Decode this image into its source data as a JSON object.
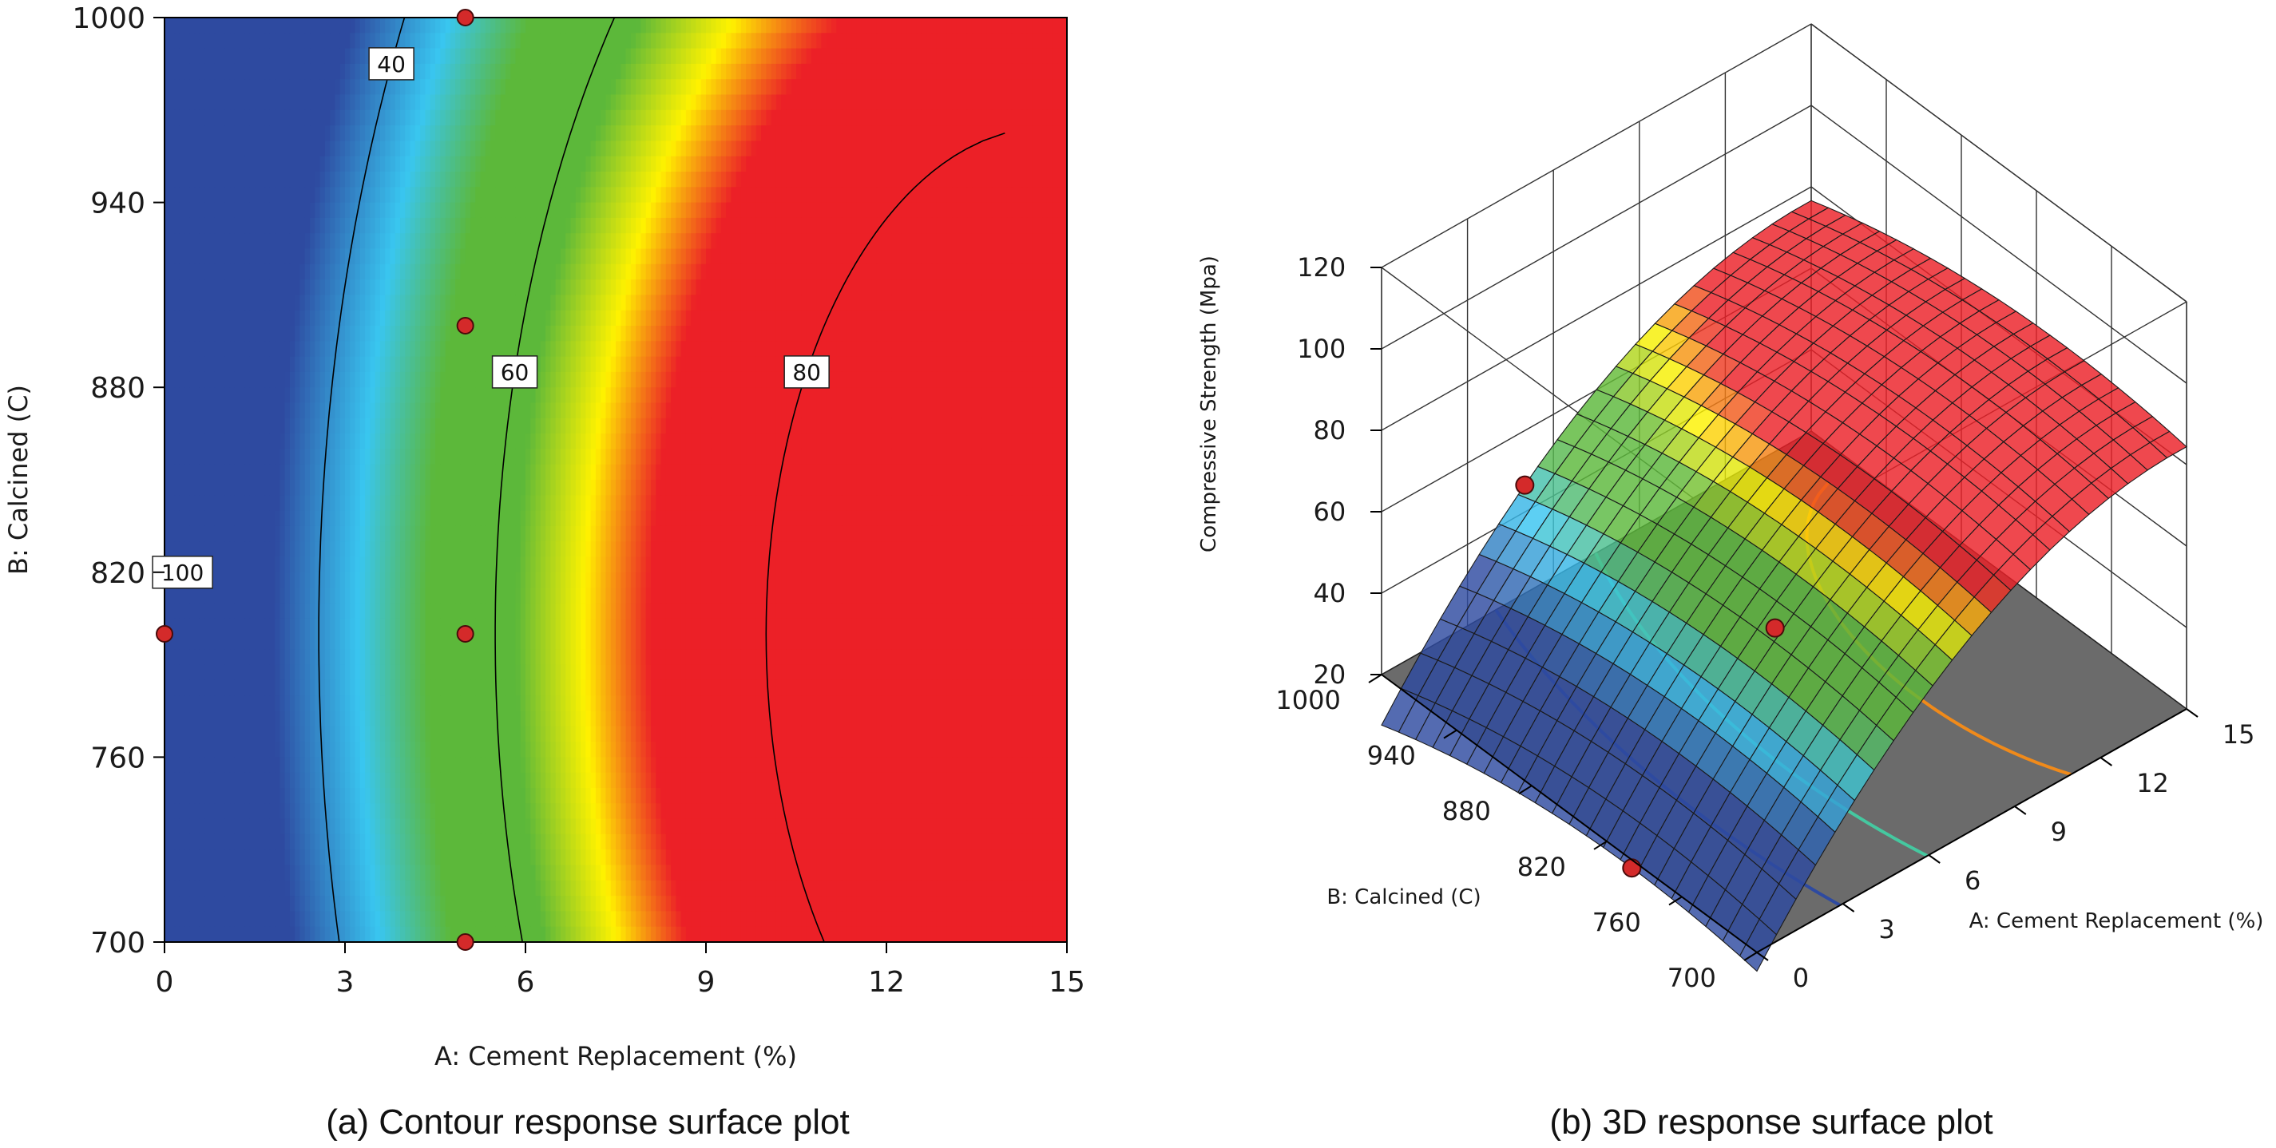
{
  "figure": {
    "caption_a": "(a) Contour response surface plot",
    "caption_b": "(b) 3D response surface plot"
  },
  "chart_data": [
    {
      "type": "contour",
      "title": "(a) Contour response surface plot",
      "xlabel": "A: Cement Replacement (%)",
      "ylabel": "B: Calcined (C)",
      "xlim": [
        0,
        15
      ],
      "ylim": [
        700,
        1000
      ],
      "xticks": [
        "0",
        "3",
        "6",
        "9",
        "12",
        "15"
      ],
      "yticks": [
        "700",
        "760",
        "820",
        "880",
        "940",
        "1000"
      ],
      "contour_levels": [
        {
          "value": 40,
          "label": "40"
        },
        {
          "value": 60,
          "label": "60"
        },
        {
          "value": 80,
          "label": "80"
        },
        {
          "value": 100,
          "label": "100"
        }
      ],
      "design_points": [
        {
          "x": 5,
          "y": 1000
        },
        {
          "x": 5,
          "y": 900
        },
        {
          "x": 0,
          "y": 800
        },
        {
          "x": 5,
          "y": 800
        },
        {
          "x": 5,
          "y": 700
        }
      ],
      "colors": {
        "low": "#2e4aa0",
        "mid": "#39c6f0",
        "green": "#5cb83a",
        "yellow": "#fff200",
        "high": "#ec2027"
      }
    },
    {
      "type": "surface3d",
      "title": "(b) 3D response surface plot",
      "xlabel": "A: Cement Replacement (%)",
      "ylabel": "B: Calcined (C)",
      "zlabel": "Compressive Strength (Mpa)",
      "xlim": [
        0,
        15
      ],
      "ylim": [
        700,
        1000
      ],
      "zlim": [
        20,
        120
      ],
      "xticks": [
        "0",
        "3",
        "6",
        "9",
        "12",
        "15"
      ],
      "yticks": [
        "700",
        "760",
        "820",
        "880",
        "940",
        "1000"
      ],
      "zticks": [
        "20",
        "40",
        "60",
        "80",
        "100",
        "120"
      ],
      "floor_color": "#6b6b6b",
      "floor_contour_colors": [
        "#2e4aa0",
        "#45c8a0",
        "#f08a1a",
        "#e02020",
        "#e02020"
      ]
    }
  ]
}
